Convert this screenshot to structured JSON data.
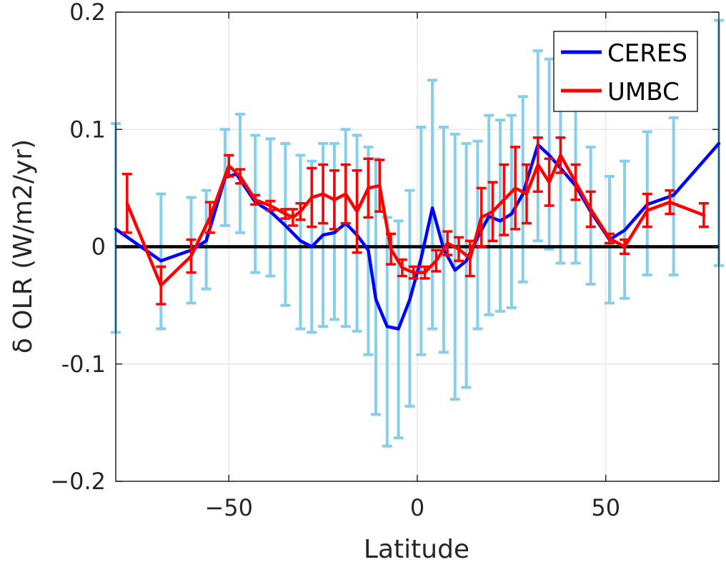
{
  "chart_data": {
    "type": "line",
    "title": "",
    "xlabel": "Latitude",
    "ylabel": "δ OLR (W/m2/yr)",
    "xlim": [
      -80,
      80
    ],
    "ylim": [
      -0.2,
      0.2
    ],
    "x_ticks": [
      -50,
      0,
      50
    ],
    "x_tick_labels": [
      "−50",
      "0",
      "50"
    ],
    "y_ticks": [
      -0.2,
      -0.1,
      0,
      0.1,
      0.2
    ],
    "y_tick_labels": [
      "−0.2",
      "-0.1",
      "0",
      "0.1",
      "0.2"
    ],
    "grid": true,
    "legend_position": "top-right",
    "zero_line": 0,
    "colors": {
      "ceres": "#0000ff",
      "umbc": "#ff0000",
      "ceres_err": "#87ceeb",
      "zero": "#000000"
    },
    "series": [
      {
        "name": "CERES",
        "color": "#0000ff",
        "x": [
          -80,
          -68,
          -60,
          -56,
          -51,
          -48,
          -43,
          -39,
          -35,
          -31,
          -28,
          -25,
          -22,
          -19,
          -16,
          -13,
          -11,
          -8,
          -5,
          -2,
          1,
          4,
          7,
          10,
          13,
          16,
          19,
          22,
          25,
          28,
          32,
          35,
          38,
          42,
          46,
          51,
          55,
          61,
          68,
          80
        ],
        "y": [
          0.015,
          -0.012,
          -0.003,
          0.005,
          0.059,
          0.062,
          0.038,
          0.03,
          0.018,
          0.005,
          0.0,
          0.01,
          0.012,
          0.02,
          0.01,
          -0.003,
          -0.045,
          -0.068,
          -0.07,
          -0.045,
          -0.01,
          0.033,
          -0.002,
          -0.02,
          -0.012,
          0.008,
          0.026,
          0.022,
          0.028,
          0.045,
          0.087,
          0.078,
          0.067,
          0.052,
          0.03,
          0.006,
          0.014,
          0.036,
          0.044,
          0.088
        ],
        "err_x": [
          -80,
          -68,
          -60,
          -56,
          -51,
          -47,
          -43,
          -39,
          -35,
          -31,
          -28,
          -25,
          -22,
          -19,
          -16,
          -13,
          -11,
          -8,
          -5,
          -2,
          1,
          4,
          7,
          10,
          13,
          16,
          19,
          22,
          25,
          28,
          32,
          35,
          38,
          42,
          46,
          51,
          55,
          61,
          68,
          80
        ],
        "err_lo": [
          -0.073,
          -0.07,
          -0.048,
          -0.036,
          0.018,
          0.012,
          -0.022,
          -0.025,
          -0.05,
          -0.07,
          -0.073,
          -0.068,
          -0.062,
          -0.068,
          -0.072,
          -0.092,
          -0.143,
          -0.17,
          -0.163,
          -0.136,
          -0.092,
          -0.07,
          -0.09,
          -0.13,
          -0.12,
          -0.07,
          -0.058,
          -0.055,
          -0.052,
          -0.03,
          0.005,
          -0.002,
          -0.014,
          -0.014,
          -0.032,
          -0.048,
          -0.044,
          -0.024,
          -0.024,
          -0.016
        ],
        "err_hi": [
          0.105,
          0.045,
          0.042,
          0.048,
          0.1,
          0.113,
          0.095,
          0.092,
          0.088,
          0.078,
          0.073,
          0.088,
          0.088,
          0.1,
          0.095,
          0.085,
          0.075,
          0.025,
          0.022,
          0.048,
          0.102,
          0.142,
          0.102,
          0.096,
          0.088,
          0.09,
          0.112,
          0.108,
          0.112,
          0.128,
          0.167,
          0.16,
          0.148,
          0.12,
          0.085,
          0.06,
          0.073,
          0.098,
          0.11,
          0.193
        ]
      },
      {
        "name": "UMBC",
        "color": "#ff0000",
        "x": [
          -77,
          -68,
          -60,
          -55,
          -50,
          -47,
          -43,
          -39,
          -35,
          -33,
          -31,
          -28,
          -25,
          -22,
          -19,
          -16,
          -13,
          -10,
          -7,
          -4,
          -1,
          2,
          5,
          8,
          11,
          14,
          17,
          20,
          23,
          26,
          29,
          32,
          35,
          38,
          42,
          46,
          51,
          55,
          61,
          67,
          76
        ],
        "y": [
          0.037,
          -0.033,
          -0.008,
          0.025,
          0.069,
          0.06,
          0.04,
          0.035,
          0.028,
          0.025,
          0.03,
          0.042,
          0.045,
          0.04,
          0.045,
          0.03,
          0.05,
          0.052,
          -0.002,
          -0.018,
          -0.022,
          -0.022,
          -0.012,
          0.003,
          -0.002,
          -0.01,
          0.025,
          0.03,
          0.04,
          0.05,
          0.045,
          0.07,
          0.055,
          0.078,
          0.055,
          0.032,
          0.007,
          0.0,
          0.031,
          0.038,
          0.027
        ],
        "err": [
          0.025,
          0.016,
          0.014,
          0.013,
          0.009,
          0.006,
          0.004,
          0.004,
          0.004,
          0.007,
          0.007,
          0.025,
          0.025,
          0.025,
          0.025,
          0.035,
          0.025,
          0.022,
          0.013,
          0.007,
          0.005,
          0.005,
          0.009,
          0.01,
          0.01,
          0.015,
          0.025,
          0.025,
          0.03,
          0.035,
          0.025,
          0.023,
          0.02,
          0.015,
          0.015,
          0.015,
          0.004,
          0.006,
          0.014,
          0.01,
          0.01
        ]
      }
    ]
  }
}
